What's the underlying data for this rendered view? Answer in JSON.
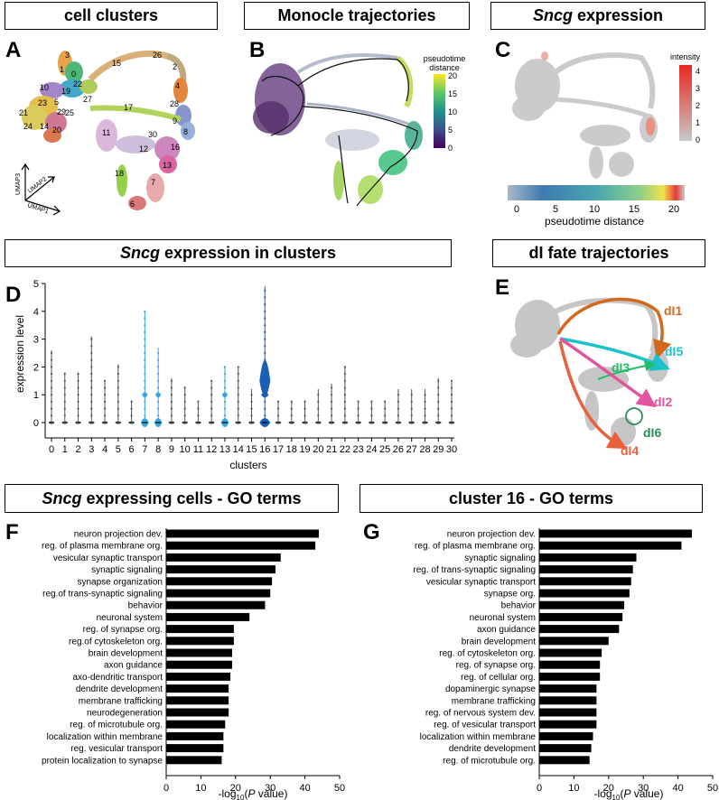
{
  "titles": {
    "a": "cell clusters",
    "b": "Monocle trajectories",
    "c_gene": "Sncg",
    "c_rest": " expression",
    "d_gene": "Sncg",
    "d_rest": " expression in clusters",
    "e": "dI fate trajectories",
    "f_gene": "Sncg",
    "f_rest": " expressing cells - GO terms",
    "g": "cluster 16 - GO terms"
  },
  "panel_letters": [
    "A",
    "B",
    "C",
    "D",
    "E",
    "F",
    "G"
  ],
  "colors": {
    "bar": "#000000",
    "grey": "#c6c6c6",
    "blue_violin": "#3aa6e0",
    "dark_violin": "#1a5fb4",
    "dI1": "#d2691e",
    "dI5": "#19c3c8",
    "dI3": "#22bb66",
    "dI2": "#e0559e",
    "dI6": "#2e8b57",
    "dI4": "#e8613c"
  },
  "panelA": {
    "cluster_labels": [
      "3",
      "1",
      "0",
      "10",
      "19",
      "22",
      "23",
      "5",
      "21",
      "24",
      "14",
      "29",
      "20",
      "15",
      "27",
      "25",
      "17",
      "11",
      "12",
      "18",
      "30",
      "13",
      "7",
      "6",
      "26",
      "2",
      "4",
      "28",
      "9",
      "8",
      "16"
    ],
    "axis_labels": [
      "UMAP3",
      "UMAP2",
      "UMAP1"
    ]
  },
  "panelB": {
    "legend_title": "pseudotime\ndistance",
    "legend_ticks": [
      "20",
      "15",
      "10",
      "5",
      "0"
    ]
  },
  "panelC": {
    "legend_title": "intensity",
    "legend_ticks": [
      "4",
      "3",
      "2",
      "1",
      "0"
    ],
    "bar_ticks": [
      "0",
      "5",
      "10",
      "15",
      "20"
    ],
    "bar_label": "pseudotime distance"
  },
  "panelE": {
    "labels": [
      "dI1",
      "dI5",
      "dI3",
      "dI2",
      "dI6",
      "dI4"
    ]
  },
  "chart_data": [
    {
      "type": "violin",
      "title": "Sncg expression in clusters",
      "xlabel": "clusters",
      "ylabel": "expression level",
      "ylim": [
        0,
        5
      ],
      "categories": [
        "0",
        "1",
        "2",
        "3",
        "4",
        "5",
        "6",
        "7",
        "8",
        "9",
        "10",
        "11",
        "12",
        "13",
        "14",
        "15",
        "16",
        "17",
        "18",
        "19",
        "20",
        "21",
        "22",
        "23",
        "24",
        "25",
        "26",
        "27",
        "28",
        "29",
        "30"
      ],
      "yticks": [
        "0",
        "1",
        "2",
        "3",
        "4",
        "5"
      ],
      "max_values": [
        2.6,
        1.8,
        1.8,
        3.1,
        1.5,
        2.1,
        0.8,
        4.0,
        2.7,
        1.6,
        1.3,
        0.8,
        1.5,
        2.0,
        2.0,
        1.2,
        4.9,
        0.8,
        0.8,
        0.8,
        1.2,
        1.4,
        2.0,
        0.8,
        0.8,
        0.8,
        1.2,
        1.2,
        1.2,
        1.6,
        1.5
      ],
      "highlighted": [
        "7",
        "8",
        "13",
        "16"
      ]
    },
    {
      "type": "bar",
      "orientation": "horizontal",
      "title": "Sncg expressing cells - GO terms",
      "xlabel": "-log10(P value)",
      "xlim": [
        0,
        50
      ],
      "xticks": [
        "0",
        "10",
        "20",
        "30",
        "40",
        "50"
      ],
      "categories": [
        "neuron projection dev.",
        "reg. of plasma membrane org.",
        "vesicular synaptic transport",
        "synaptic signaling",
        "synapse organization",
        "reg.of trans-synaptic signaling",
        "behavior",
        "neuronal system",
        "reg. of synapse org.",
        "reg.of cytoskeleton org.",
        "brain development",
        "axon guidance",
        "axo-dendritic transport",
        "dendrite development",
        "membrane trafficking",
        "neurodegeneration",
        "reg. of microtubule org.",
        "localization within membrane",
        "reg. vesicular transport",
        "protein localization to synapse"
      ],
      "values": [
        44,
        43,
        33,
        31.5,
        30.5,
        30,
        28.5,
        24,
        19.5,
        19.5,
        19,
        19,
        18.5,
        18,
        18,
        18,
        17,
        16.5,
        16.5,
        16
      ]
    },
    {
      "type": "bar",
      "orientation": "horizontal",
      "title": "cluster 16 - GO terms",
      "xlabel": "-log10(P value)",
      "xlim": [
        0,
        50
      ],
      "xticks": [
        "0",
        "10",
        "20",
        "30",
        "40",
        "50"
      ],
      "categories": [
        "neuron projection dev.",
        "reg. of plasma membrane org.",
        "synaptic signaling",
        "reg. of trans-synaptic signaling",
        "vesicular synaptic transport",
        "synapse org.",
        "behavior",
        "neuronal system",
        "axon guidance",
        "brain development",
        "reg. of cytoskeleton org.",
        "reg. of synapse org.",
        "reg. of cellular org.",
        "dopaminergic synapse",
        "membrane trafficking",
        "reg. of nervous system dev.",
        "reg. of vesicular transport",
        "localization within membrane",
        "dendrite development",
        "reg. of microtubule org."
      ],
      "values": [
        44,
        41,
        28,
        27,
        26.5,
        26,
        24.5,
        24,
        23,
        20,
        18,
        17.5,
        17.5,
        16.5,
        16.5,
        16.5,
        16.5,
        15.5,
        15,
        14.5
      ]
    }
  ]
}
